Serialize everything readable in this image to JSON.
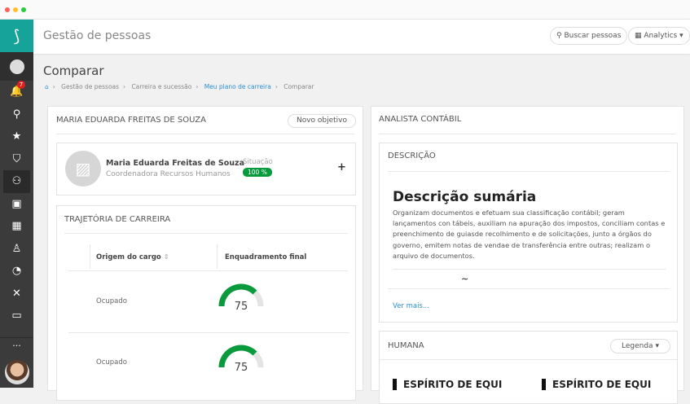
{
  "window": {
    "dots": [
      "#ff5f57",
      "#ffbd2e",
      "#28c940"
    ]
  },
  "sidebar": {
    "logo": "S",
    "notifications": "7",
    "items": [
      {
        "icon": "bell-icon",
        "glyph": "🔔"
      },
      {
        "icon": "search-icon",
        "glyph": "⚲"
      },
      {
        "icon": "star-icon",
        "glyph": "★"
      },
      {
        "icon": "shield-icon",
        "glyph": "⛉"
      },
      {
        "icon": "people-icon",
        "glyph": "⚇"
      },
      {
        "icon": "briefcase-icon",
        "glyph": "▣"
      },
      {
        "icon": "grid-icon",
        "glyph": "▦"
      },
      {
        "icon": "person-board-icon",
        "glyph": "♙"
      },
      {
        "icon": "dashboard-icon",
        "glyph": "◔"
      },
      {
        "icon": "x-icon",
        "glyph": "✕"
      },
      {
        "icon": "monitor-icon",
        "glyph": "▭"
      }
    ],
    "more": "..."
  },
  "header": {
    "title": "Gestão de pessoas",
    "search_button": "Buscar pessoas",
    "analytics_button": "Analytics"
  },
  "page": {
    "title": "Comparar",
    "breadcrumb": [
      "Gestão de pessoas",
      "Carreira e sucessão",
      "Meu plano de carreira",
      "Comparar"
    ]
  },
  "left": {
    "title": "MARIA EDUARDA FREITAS DE SOUZA",
    "new_goal": "Novo objetivo",
    "person": {
      "name": "Maria Eduarda Freitas de Souza",
      "role": "Coordenadora Recursos Humanos",
      "status_label": "Situação",
      "status_value": "100 %",
      "add": "+"
    },
    "trajectory": {
      "title": "TRAJETÓRIA DE CARREIRA",
      "columns": [
        "Origem do cargo",
        "Enquadramento final"
      ],
      "rows": [
        {
          "origin": "Ocupado",
          "score": "75",
          "percent": 75
        },
        {
          "origin": "Ocupado",
          "score": "75",
          "percent": 75
        }
      ]
    }
  },
  "right": {
    "title": "ANALISTA CONTÁBIL",
    "description": {
      "title": "DESCRIÇÃO",
      "heading": "Descrição sumária",
      "text": "Organizam documentos e efetuam sua classificação contábil; geram lançamentos con tábeis, auxiliam na apuração dos impostos, conciliam contas e preenchimento de guiasde recolhimento e de solicitações, junto a órgãos do governo, emitem notas de vendae de transferência entre outras; realizam o arquivo de documentos.",
      "toggle": "~",
      "more": "Ver mais..."
    },
    "humana": {
      "title": "HUMANA",
      "legend": "Legenda",
      "items": [
        "ESPÍRITO DE EQUI",
        "ESPÍRITO DE EQUI"
      ]
    }
  },
  "colors": {
    "teal": "#16a39a",
    "green": "#0a9a3e",
    "link": "#2a8fd0"
  }
}
